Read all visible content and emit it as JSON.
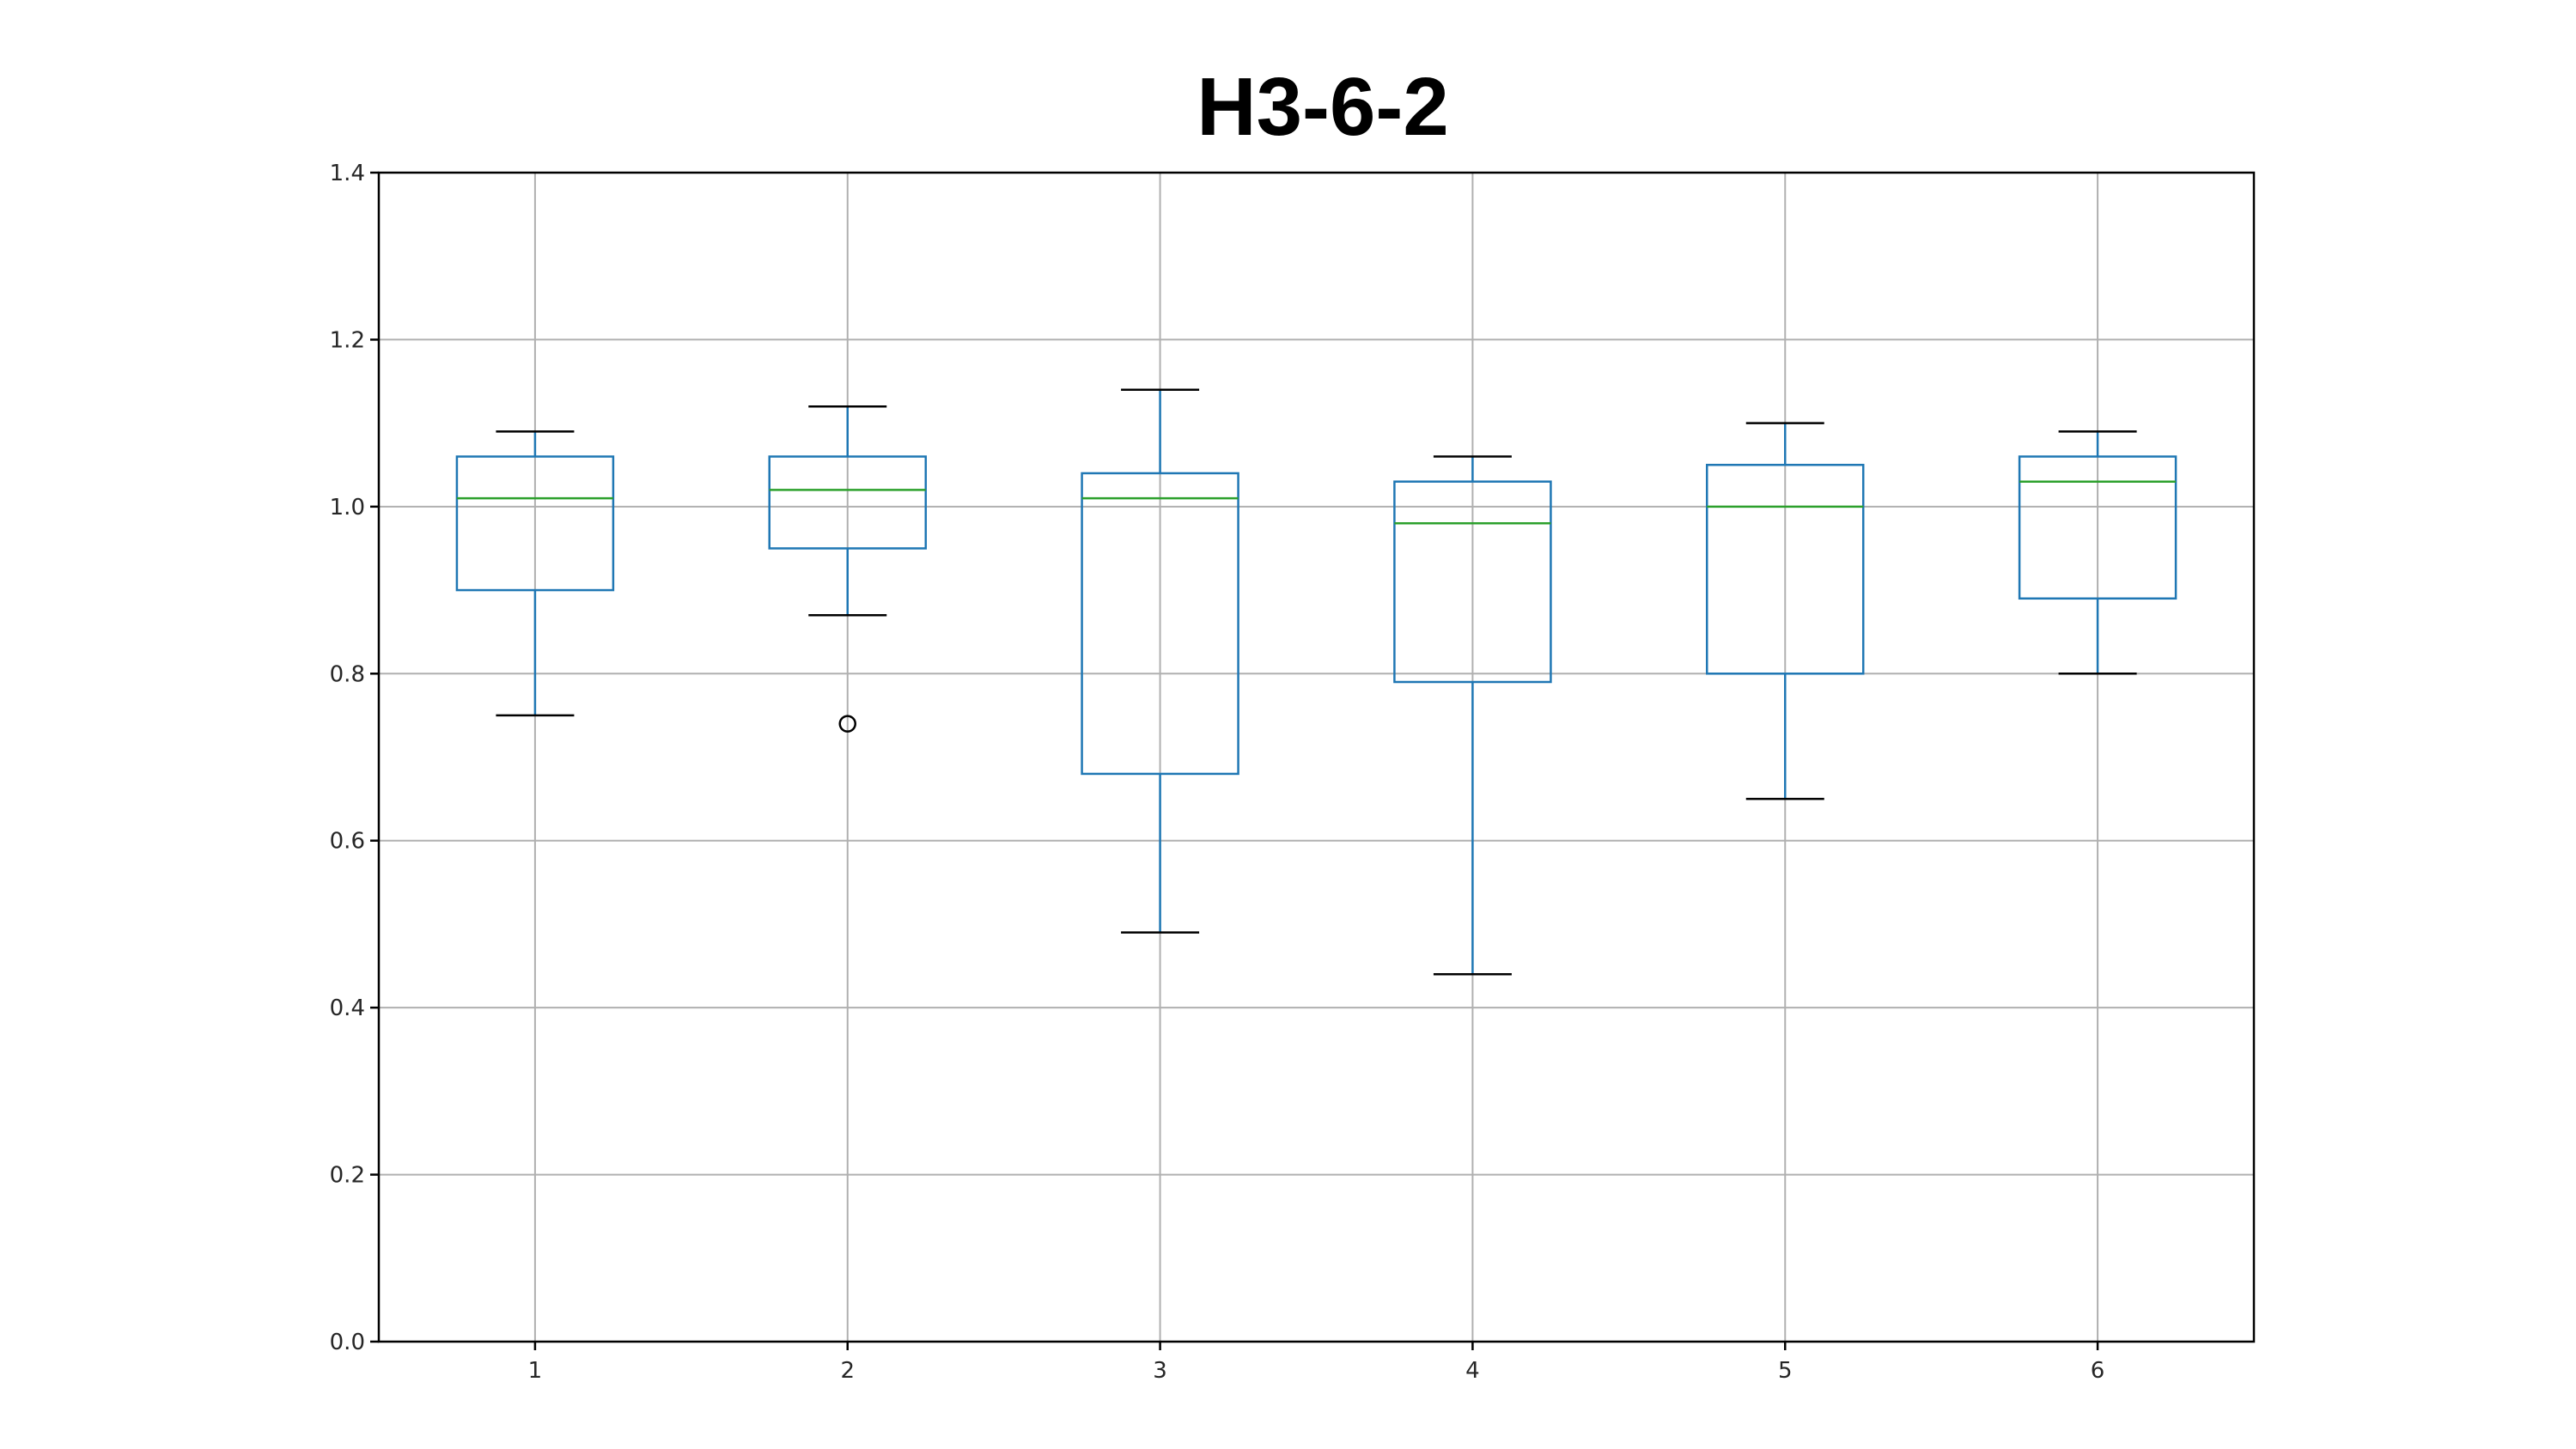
{
  "chart_data": {
    "type": "box",
    "title": "H3-6-2",
    "xlabel": "",
    "ylabel": "",
    "categories": [
      "1",
      "2",
      "3",
      "4",
      "5",
      "6"
    ],
    "ylim": [
      0.0,
      1.4
    ],
    "yticks": [
      "0.0",
      "0.2",
      "0.4",
      "0.6",
      "0.8",
      "1.0",
      "1.2",
      "1.4"
    ],
    "grid": true,
    "boxes": [
      {
        "category": "1",
        "whisker_low": 0.75,
        "q1": 0.9,
        "median": 1.01,
        "q3": 1.06,
        "whisker_high": 1.09,
        "outliers": []
      },
      {
        "category": "2",
        "whisker_low": 0.87,
        "q1": 0.95,
        "median": 1.02,
        "q3": 1.06,
        "whisker_high": 1.12,
        "outliers": [
          0.74
        ]
      },
      {
        "category": "3",
        "whisker_low": 0.49,
        "q1": 0.68,
        "median": 1.01,
        "q3": 1.04,
        "whisker_high": 1.14,
        "outliers": []
      },
      {
        "category": "4",
        "whisker_low": 0.44,
        "q1": 0.79,
        "median": 0.98,
        "q3": 1.03,
        "whisker_high": 1.06,
        "outliers": []
      },
      {
        "category": "5",
        "whisker_low": 0.65,
        "q1": 0.8,
        "median": 1.0,
        "q3": 1.05,
        "whisker_high": 1.1,
        "outliers": []
      },
      {
        "category": "6",
        "whisker_low": 0.8,
        "q1": 0.89,
        "median": 1.03,
        "q3": 1.06,
        "whisker_high": 1.09,
        "outliers": []
      }
    ],
    "colors": {
      "box": "#1f77b4",
      "median": "#2ca02c",
      "cap": "#000000",
      "grid": "#b0b0b0",
      "outlier": "#000000"
    }
  }
}
